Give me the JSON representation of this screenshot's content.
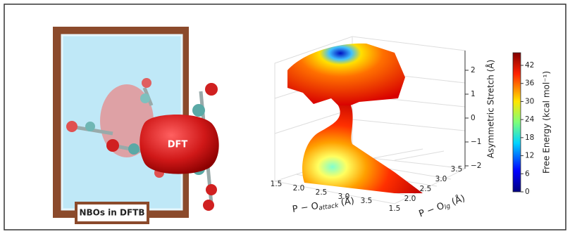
{
  "left_panel": {
    "label": "NBOs in DFTB",
    "blob_label": "DFT"
  },
  "plot": {
    "x_axis": {
      "label": "P − O",
      "subscript": "attack",
      "unit": "(Å)",
      "ticks": [
        "1.5",
        "2.0",
        "2.5",
        "3.0",
        "3.5"
      ]
    },
    "y_axis": {
      "label": "P − O",
      "subscript": "lg",
      "unit": "(Å)",
      "ticks": [
        "1.5",
        "2.0",
        "2.5",
        "3.0",
        "3.5"
      ]
    },
    "z_axis": {
      "label": "Asymmetric Stretch (Å)",
      "ticks": [
        "2",
        "1",
        "0",
        "−1",
        "−2"
      ]
    },
    "colorbar": {
      "label": "Free Energy (kcal mol⁻¹)",
      "ticks": [
        "0",
        "6",
        "12",
        "18",
        "24",
        "30",
        "36",
        "42"
      ]
    }
  }
}
